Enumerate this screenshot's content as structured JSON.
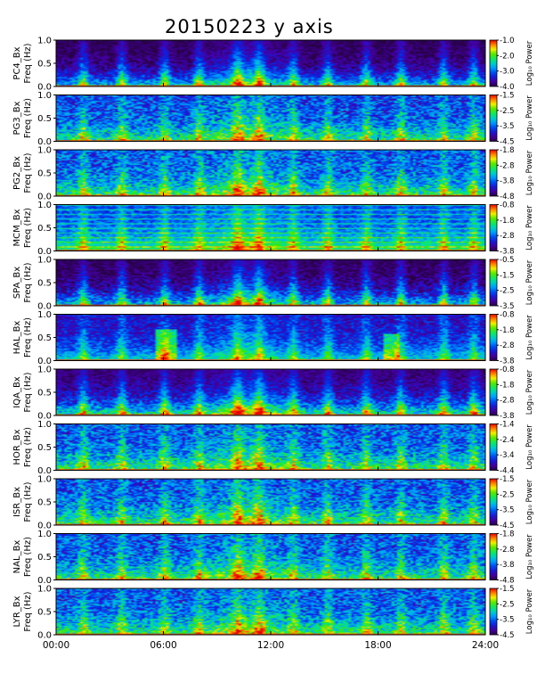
{
  "title": "20150223 y axis",
  "x_ticks": [
    "00:00",
    "06:00",
    "12:00",
    "18:00",
    "24:00"
  ],
  "colorbar_label": "Log₁₀ Power",
  "chart_data": [
    {
      "type": "heatmap",
      "station": "PC4",
      "ylabel_top": "PC4_Bx",
      "ylabel_bottom": "Freq (Hz)",
      "y_ticks": [
        "0.0",
        "0.5",
        "1.0"
      ],
      "ylim": [
        0,
        1.0
      ],
      "xlim": [
        "00:00",
        "24:00"
      ],
      "cbar_ticks": [
        "-1.0",
        "-2.0",
        "-3.0",
        "-4.0"
      ],
      "cbar_range": [
        -4.0,
        -1.0
      ]
    },
    {
      "type": "heatmap",
      "station": "PG3",
      "ylabel_top": "PG3_Bx",
      "ylabel_bottom": "Freq (Hz)",
      "y_ticks": [
        "0.0",
        "0.5",
        "1.0"
      ],
      "ylim": [
        0,
        1.0
      ],
      "xlim": [
        "00:00",
        "24:00"
      ],
      "cbar_ticks": [
        "-1.5",
        "-2.5",
        "-3.5",
        "-4.5"
      ],
      "cbar_range": [
        -4.5,
        -1.5
      ]
    },
    {
      "type": "heatmap",
      "station": "PG2",
      "ylabel_top": "PG2_Bx",
      "ylabel_bottom": "Freq (Hz)",
      "y_ticks": [
        "0.0",
        "0.5",
        "1.0"
      ],
      "ylim": [
        0,
        1.0
      ],
      "xlim": [
        "00:00",
        "24:00"
      ],
      "cbar_ticks": [
        "-1.8",
        "-2.8",
        "-3.8",
        "-4.8"
      ],
      "cbar_range": [
        -4.8,
        -1.8
      ]
    },
    {
      "type": "heatmap",
      "station": "MCM",
      "ylabel_top": "MCM_Bx",
      "ylabel_bottom": "Freq (Hz)",
      "y_ticks": [
        "0.0",
        "0.5",
        "1.0"
      ],
      "ylim": [
        0,
        1.0
      ],
      "xlim": [
        "00:00",
        "24:00"
      ],
      "cbar_ticks": [
        "-0.8",
        "-1.8",
        "-2.8",
        "-3.8"
      ],
      "cbar_range": [
        -3.8,
        -0.8
      ]
    },
    {
      "type": "heatmap",
      "station": "SPA",
      "ylabel_top": "SPA_Bx",
      "ylabel_bottom": "Freq (Hz)",
      "y_ticks": [
        "0.0",
        "0.5",
        "1.0"
      ],
      "ylim": [
        0,
        1.0
      ],
      "xlim": [
        "00:00",
        "24:00"
      ],
      "cbar_ticks": [
        "-0.5",
        "-1.5",
        "-2.5",
        "-3.5"
      ],
      "cbar_range": [
        -3.5,
        -0.5
      ]
    },
    {
      "type": "heatmap",
      "station": "HAL",
      "ylabel_top": "HAL_Bx",
      "ylabel_bottom": "Freq (Hz)",
      "y_ticks": [
        "0.0",
        "0.5",
        "1.0"
      ],
      "ylim": [
        0,
        1.0
      ],
      "xlim": [
        "00:00",
        "24:00"
      ],
      "cbar_ticks": [
        "-0.8",
        "-1.8",
        "-2.8",
        "-3.8"
      ],
      "cbar_range": [
        -3.8,
        -0.8
      ]
    },
    {
      "type": "heatmap",
      "station": "IQA",
      "ylabel_top": "IQA_Bx",
      "ylabel_bottom": "Freq (Hz)",
      "y_ticks": [
        "0.0",
        "0.5",
        "1.0"
      ],
      "ylim": [
        0,
        1.0
      ],
      "xlim": [
        "00:00",
        "24:00"
      ],
      "cbar_ticks": [
        "-0.8",
        "-1.8",
        "-2.8",
        "-3.8"
      ],
      "cbar_range": [
        -3.8,
        -0.8
      ]
    },
    {
      "type": "heatmap",
      "station": "HOR",
      "ylabel_top": "HOR_Bx",
      "ylabel_bottom": "Freq (Hz)",
      "y_ticks": [
        "0.0",
        "0.5",
        "1.0"
      ],
      "ylim": [
        0,
        1.0
      ],
      "xlim": [
        "00:00",
        "24:00"
      ],
      "cbar_ticks": [
        "-1.4",
        "-2.4",
        "-3.4",
        "-4.4"
      ],
      "cbar_range": [
        -4.4,
        -1.4
      ]
    },
    {
      "type": "heatmap",
      "station": "ISR",
      "ylabel_top": "ISR_Bx",
      "ylabel_bottom": "Freq (Hz)",
      "y_ticks": [
        "0.0",
        "0.5",
        "1.0"
      ],
      "ylim": [
        0,
        1.0
      ],
      "xlim": [
        "00:00",
        "24:00"
      ],
      "cbar_ticks": [
        "-1.5",
        "-2.5",
        "-3.5",
        "-4.5"
      ],
      "cbar_range": [
        -4.5,
        -1.5
      ]
    },
    {
      "type": "heatmap",
      "station": "NAL",
      "ylabel_top": "NAL_Bx",
      "ylabel_bottom": "Freq (Hz)",
      "y_ticks": [
        "0.0",
        "0.5",
        "1.0"
      ],
      "ylim": [
        0,
        1.0
      ],
      "xlim": [
        "00:00",
        "24:00"
      ],
      "cbar_ticks": [
        "-1.8",
        "-2.8",
        "-3.8",
        "-4.8"
      ],
      "cbar_range": [
        -4.8,
        -1.8
      ]
    },
    {
      "type": "heatmap",
      "station": "LYR",
      "ylabel_top": "LYR_Bx",
      "ylabel_bottom": "Freq (Hz)",
      "y_ticks": [
        "0.0",
        "0.5",
        "1.0"
      ],
      "ylim": [
        0,
        1.0
      ],
      "xlim": [
        "00:00",
        "24:00"
      ],
      "cbar_ticks": [
        "-1.5",
        "-2.5",
        "-3.5",
        "-4.5"
      ],
      "cbar_range": [
        -4.5,
        -1.5
      ]
    }
  ]
}
